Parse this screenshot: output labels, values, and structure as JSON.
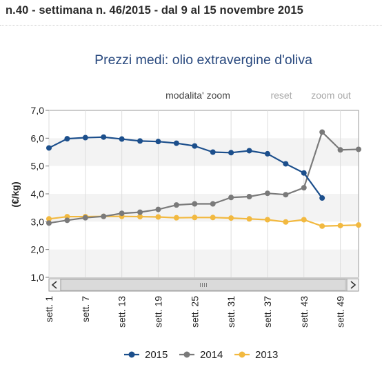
{
  "header": {
    "text": "n.40 - settimana n. 46/2015 - dal 9 al 15 novembre 2015"
  },
  "toolbar": {
    "mode_label": "modalita' zoom",
    "reset_label": "reset",
    "zoom_out_label": "zoom out"
  },
  "scrollbar": {
    "left_arrow": "<",
    "right_arrow": ">"
  },
  "colors": {
    "series_2015": "#1c4f8c",
    "series_2014": "#7a7a7a",
    "series_2013": "#f2b940",
    "title": "#2a4a7f"
  },
  "chart_data": {
    "type": "line",
    "title": "Prezzi medi: olio extravergine d'oliva",
    "ylabel": "(€/kg)",
    "xlabel": "",
    "ylim": [
      1,
      7
    ],
    "yticks": [
      "1,0",
      "2,0",
      "3,0",
      "4,0",
      "5,0",
      "6,0",
      "7,0"
    ],
    "x_tick_labels": [
      "sett. 1",
      "sett. 7",
      "sett. 13",
      "sett. 19",
      "sett. 25",
      "sett. 31",
      "sett. 37",
      "sett. 43",
      "sett. 49"
    ],
    "x_tick_weeks": [
      1,
      7,
      13,
      19,
      25,
      31,
      37,
      43,
      49
    ],
    "xlim": [
      1,
      52
    ],
    "grid": "vertical",
    "legend_position": "bottom",
    "series": [
      {
        "name": "2015",
        "color": "#1c4f8c",
        "x": [
          1,
          4,
          7,
          10,
          13,
          16,
          19,
          22,
          25,
          28,
          31,
          34,
          37,
          40,
          43,
          46
        ],
        "y": [
          5.65,
          5.98,
          6.02,
          6.04,
          5.97,
          5.9,
          5.88,
          5.82,
          5.72,
          5.5,
          5.48,
          5.55,
          5.44,
          5.08,
          4.75,
          3.85
        ]
      },
      {
        "name": "2014",
        "color": "#7a7a7a",
        "x": [
          1,
          4,
          7,
          10,
          13,
          16,
          19,
          22,
          25,
          28,
          31,
          34,
          37,
          40,
          43,
          46,
          49,
          52
        ],
        "y": [
          2.95,
          3.05,
          3.14,
          3.19,
          3.3,
          3.34,
          3.44,
          3.6,
          3.64,
          3.64,
          3.87,
          3.9,
          4.02,
          3.97,
          4.22,
          6.22,
          5.58,
          5.6
        ]
      },
      {
        "name": "2013",
        "color": "#f2b940",
        "x": [
          1,
          4,
          7,
          10,
          13,
          16,
          19,
          22,
          25,
          28,
          31,
          34,
          37,
          40,
          43,
          46,
          49,
          52
        ],
        "y": [
          3.1,
          3.18,
          3.18,
          3.19,
          3.19,
          3.18,
          3.17,
          3.14,
          3.15,
          3.15,
          3.13,
          3.1,
          3.07,
          2.99,
          3.07,
          2.84,
          2.86,
          2.88
        ]
      }
    ]
  }
}
